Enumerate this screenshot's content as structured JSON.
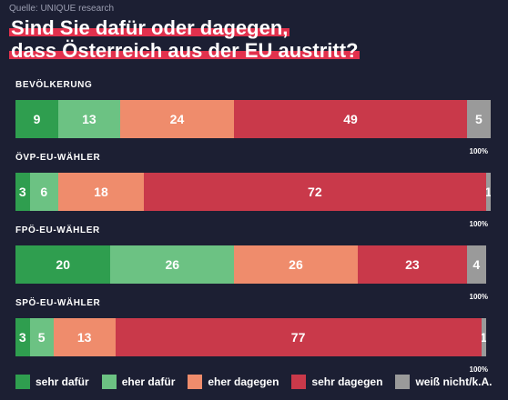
{
  "source": "Quelle: UNIQUE research",
  "title_lines": [
    "Sind Sie dafür oder dagegen,",
    "dass Österreich aus der EU austritt?"
  ],
  "colors": {
    "sehr_dafuer": "#2f9e4f",
    "eher_dafuer": "#6cc283",
    "eher_dagegen": "#ef8c6c",
    "sehr_dagegen": "#c9394a",
    "weiss_nicht": "#9a9a9a"
  },
  "chart_data": {
    "type": "bar",
    "stacked": true,
    "orientation": "horizontal",
    "categories": [
      "BEVÖLKERUNG",
      "ÖVP-EU-WÄHLER",
      "FPÖ-EU-WÄHLER",
      "SPÖ-EU-WÄHLER"
    ],
    "series": [
      {
        "name": "sehr dafür",
        "values": [
          9,
          3,
          20,
          3
        ]
      },
      {
        "name": "eher dafür",
        "values": [
          13,
          6,
          26,
          5
        ]
      },
      {
        "name": "eher dagegen",
        "values": [
          24,
          18,
          26,
          13
        ]
      },
      {
        "name": "sehr dagegen",
        "values": [
          49,
          72,
          23,
          77
        ]
      },
      {
        "name": "weiß nicht/k.A.",
        "values": [
          5,
          1,
          4,
          1
        ]
      }
    ],
    "total_label": "100%",
    "xlim": [
      0,
      100
    ],
    "legend": "bottom"
  }
}
